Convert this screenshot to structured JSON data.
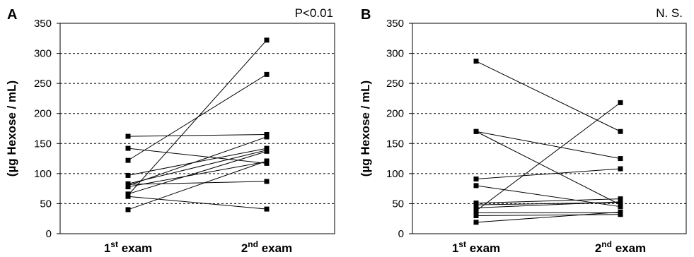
{
  "chart_data": [
    {
      "type": "line",
      "panel_letter": "A",
      "annotation": "P<0.01",
      "categories": [
        "1st exam",
        "2nd exam"
      ],
      "x_tick_labels": [
        {
          "base": "1",
          "sup": "st",
          "rest": " exam"
        },
        {
          "base": "2",
          "sup": "nd",
          "rest": " exam"
        }
      ],
      "ylabel": "(µg Hexose / mL)",
      "ylim": [
        0,
        350
      ],
      "yticks": [
        0,
        50,
        100,
        150,
        200,
        250,
        300,
        350
      ],
      "grid": "horizontal-dashed",
      "series": [
        {
          "values": [
            162,
            165
          ]
        },
        {
          "values": [
            142,
            117
          ]
        },
        {
          "values": [
            122,
            265
          ]
        },
        {
          "values": [
            97,
            142
          ]
        },
        {
          "values": [
            83,
            139
          ]
        },
        {
          "values": [
            80,
            161
          ]
        },
        {
          "values": [
            78,
            120
          ]
        },
        {
          "values": [
            82,
            87
          ]
        },
        {
          "values": [
            66,
            137
          ]
        },
        {
          "values": [
            62,
            41
          ]
        },
        {
          "values": [
            40,
            121
          ]
        },
        {
          "values": [
            64,
            322
          ]
        }
      ]
    },
    {
      "type": "line",
      "panel_letter": "B",
      "annotation": "N. S.",
      "categories": [
        "1st exam",
        "2nd exam"
      ],
      "x_tick_labels": [
        {
          "base": "1",
          "sup": "st",
          "rest": " exam"
        },
        {
          "base": "2",
          "sup": "nd",
          "rest": " exam"
        }
      ],
      "ylabel": "(µg Hexose / mL)",
      "ylim": [
        0,
        350
      ],
      "yticks": [
        0,
        50,
        100,
        150,
        200,
        250,
        300,
        350
      ],
      "grid": "horizontal-dashed",
      "series": [
        {
          "values": [
            287,
            170
          ]
        },
        {
          "values": [
            170,
            125
          ]
        },
        {
          "values": [
            170,
            48
          ]
        },
        {
          "values": [
            91,
            108
          ]
        },
        {
          "values": [
            80,
            45
          ]
        },
        {
          "values": [
            51,
            58
          ]
        },
        {
          "values": [
            48,
            52
          ]
        },
        {
          "values": [
            43,
            53
          ]
        },
        {
          "values": [
            38,
            218
          ]
        },
        {
          "values": [
            35,
            35
          ]
        },
        {
          "values": [
            30,
            32
          ]
        },
        {
          "values": [
            19,
            36
          ]
        }
      ]
    }
  ]
}
